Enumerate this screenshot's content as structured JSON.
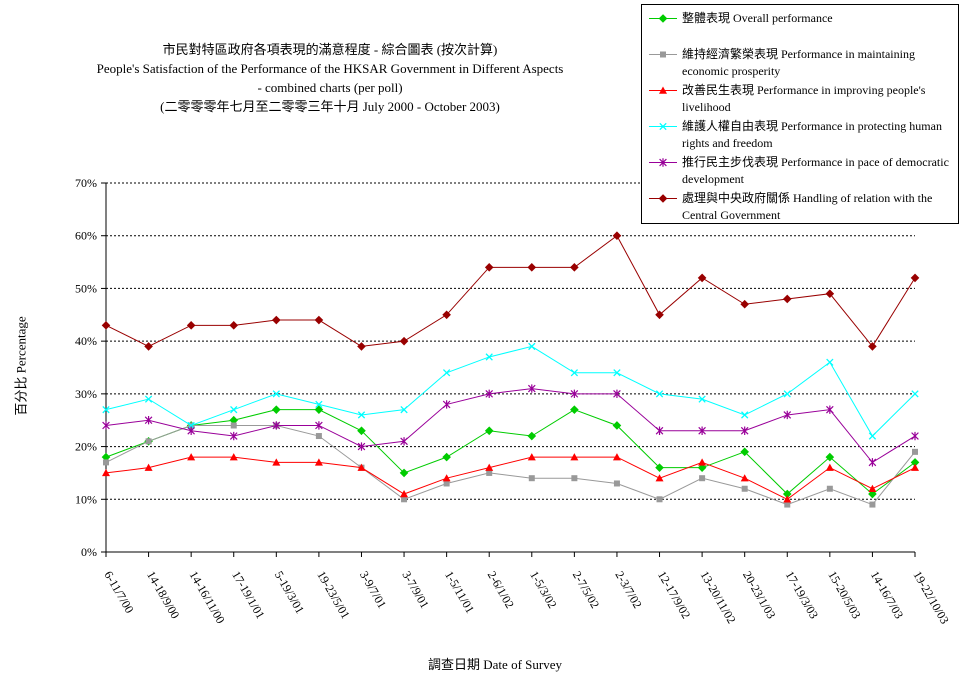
{
  "chart_data": {
    "type": "line",
    "title_zh": "市民對特區政府各項表現的滿意程度 - 綜合圖表 (按次計算)",
    "title_en_line1": "People's Satisfaction of the Performance of the HKSAR Government in Different Aspects",
    "title_en_line2": "- combined charts (per poll)",
    "subtitle": "(二零零零年七月至二零零三年十月 July 2000 - October 2003)",
    "xlabel": "調查日期 Date of Survey",
    "ylabel": "百分比 Percentage",
    "ylim": [
      0,
      70
    ],
    "yticks": [
      "0%",
      "10%",
      "20%",
      "30%",
      "40%",
      "50%",
      "60%",
      "70%"
    ],
    "grid": true,
    "legend_position": "top-right",
    "categories": [
      "6-11/7/00",
      "14-18/9/00",
      "14-16/11/00",
      "17-19/1/01",
      "5-19/3/01",
      "19-23/5/01",
      "3-9/7/01",
      "3-7/9/01",
      "1-5/11/01",
      "2-6/1/02",
      "1-5/3/02",
      "2-7/5/02",
      "2-3/7/02",
      "12-17/9/02",
      "13-20/11/02",
      "20-23/1/03",
      "17-19/3/03",
      "15-20/5/03",
      "14-16/7/03",
      "19-22/10/03"
    ],
    "series": [
      {
        "name": "整體表現 Overall performance",
        "color": "#00cc00",
        "marker": "diamond",
        "values": [
          18,
          21,
          24,
          25,
          27,
          27,
          23,
          15,
          18,
          23,
          22,
          27,
          24,
          16,
          16,
          19,
          11,
          18,
          11,
          17
        ]
      },
      {
        "name": "維持經濟繁榮表現 Performance in maintaining economic prosperity",
        "color": "#999999",
        "marker": "square",
        "values": [
          17,
          21,
          24,
          24,
          24,
          22,
          16,
          10,
          13,
          15,
          14,
          14,
          13,
          10,
          14,
          12,
          9,
          12,
          9,
          19
        ]
      },
      {
        "name": "改善民生表現 Performance in improving people's livelihood",
        "color": "#ff0000",
        "marker": "triangle",
        "values": [
          15,
          16,
          18,
          18,
          17,
          17,
          16,
          11,
          14,
          16,
          18,
          18,
          18,
          14,
          17,
          14,
          10,
          16,
          12,
          16
        ]
      },
      {
        "name": "維護人權自由表現 Performance in protecting human rights and freedom",
        "color": "#00ffff",
        "marker": "x",
        "values": [
          27,
          29,
          24,
          27,
          30,
          28,
          26,
          27,
          34,
          37,
          39,
          34,
          34,
          30,
          29,
          26,
          30,
          36,
          22,
          30
        ]
      },
      {
        "name": "推行民主步伐表現 Performance in pace of democratic development",
        "color": "#990099",
        "marker": "star",
        "values": [
          24,
          25,
          23,
          22,
          24,
          24,
          20,
          21,
          28,
          30,
          31,
          30,
          30,
          23,
          23,
          23,
          26,
          27,
          17,
          22
        ]
      },
      {
        "name": "處理與中央政府關係 Handling of relation with the Central Government",
        "color": "#990000",
        "marker": "diamond",
        "values": [
          43,
          39,
          43,
          43,
          44,
          44,
          39,
          40,
          45,
          54,
          54,
          54,
          60,
          45,
          52,
          47,
          48,
          49,
          39,
          52
        ]
      }
    ]
  }
}
